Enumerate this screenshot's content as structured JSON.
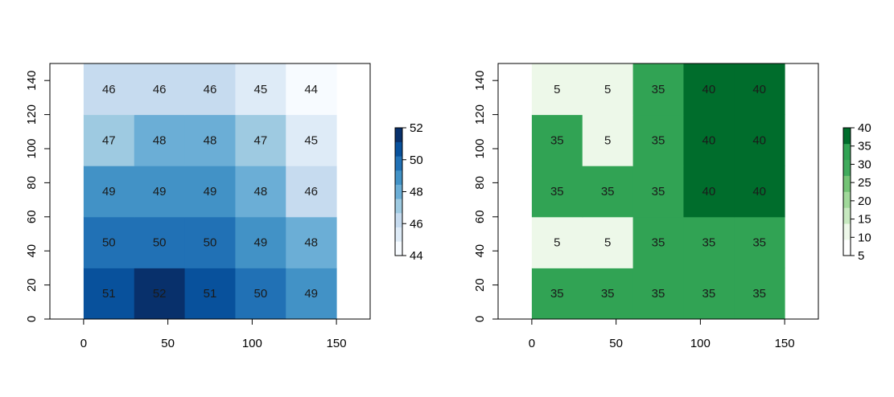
{
  "chart_data": [
    {
      "type": "heatmap",
      "title": "",
      "xlabel": "",
      "ylabel": "",
      "xlim": [
        -20,
        170
      ],
      "ylim": [
        0,
        150
      ],
      "x_ticks": [
        "0",
        "50",
        "100",
        "150"
      ],
      "y_ticks": [
        "0",
        "20",
        "40",
        "60",
        "80",
        "100",
        "120",
        "140"
      ],
      "x_edges": [
        0,
        30,
        60,
        90,
        120,
        150
      ],
      "y_edges": [
        0,
        30,
        60,
        90,
        120,
        150
      ],
      "cells": [
        [
          51,
          52,
          51,
          50,
          49
        ],
        [
          50,
          50,
          50,
          49,
          48
        ],
        [
          49,
          49,
          49,
          48,
          46
        ],
        [
          47,
          48,
          48,
          47,
          45
        ],
        [
          46,
          46,
          46,
          45,
          44
        ]
      ],
      "cell_labels": [
        [
          "51",
          "52",
          "51",
          "50",
          "49"
        ],
        [
          "50",
          "50",
          "50",
          "49",
          "48"
        ],
        [
          "49",
          "49",
          "49",
          "48",
          "46"
        ],
        [
          "47",
          "48",
          "48",
          "47",
          "45"
        ],
        [
          "46",
          "46",
          "46",
          "45",
          "44"
        ]
      ],
      "palette": "blues",
      "legend": {
        "placement": "right",
        "range": [
          44,
          52
        ],
        "ticks": [
          "44",
          "46",
          "48",
          "50",
          "52"
        ],
        "colors": [
          "#f7fbff",
          "#deebf7",
          "#c6dbef",
          "#9ecae1",
          "#6baed6",
          "#4292c6",
          "#2171b5",
          "#08519c",
          "#08306b"
        ]
      },
      "grid": false
    },
    {
      "type": "heatmap",
      "title": "",
      "xlabel": "",
      "ylabel": "",
      "xlim": [
        -20,
        170
      ],
      "ylim": [
        0,
        150
      ],
      "x_ticks": [
        "0",
        "50",
        "100",
        "150"
      ],
      "y_ticks": [
        "0",
        "20",
        "40",
        "60",
        "80",
        "100",
        "120",
        "140"
      ],
      "x_edges": [
        0,
        30,
        60,
        90,
        120,
        150
      ],
      "y_edges": [
        0,
        30,
        60,
        90,
        120,
        150
      ],
      "cells": [
        [
          35,
          35,
          35,
          35,
          35
        ],
        [
          5,
          5,
          35,
          35,
          35
        ],
        [
          35,
          35,
          35,
          40,
          40
        ],
        [
          35,
          5,
          35,
          40,
          40
        ],
        [
          5,
          5,
          35,
          40,
          40
        ]
      ],
      "cell_labels": [
        [
          "35",
          "35",
          "35",
          "35",
          "35"
        ],
        [
          "5",
          "5",
          "35",
          "35",
          "35"
        ],
        [
          "35",
          "35",
          "35",
          "40",
          "40"
        ],
        [
          "35",
          "5",
          "35",
          "40",
          "40"
        ],
        [
          "5",
          "5",
          "35",
          "40",
          "40"
        ]
      ],
      "palette": "greens",
      "legend": {
        "placement": "right",
        "range": [
          5,
          40
        ],
        "ticks": [
          "5",
          "10",
          "15",
          "20",
          "25",
          "30",
          "35",
          "40"
        ],
        "colors": [
          "#ffffff",
          "#edf8e9",
          "#c7e9c0",
          "#a1d99b",
          "#74c476",
          "#41ab5d",
          "#31a354",
          "#006d2c"
        ]
      },
      "grid": false
    }
  ],
  "colors": {
    "blues": [
      "#f7fbff",
      "#deebf7",
      "#c6dbef",
      "#9ecae1",
      "#6baed6",
      "#4292c6",
      "#2171b5",
      "#08519c",
      "#08306b"
    ],
    "greens_low": "#edf8e9",
    "greens_mid": "#31a354",
    "greens_high": "#006d2c",
    "axis": "#000000",
    "text_dark": "#1a1a1a"
  }
}
